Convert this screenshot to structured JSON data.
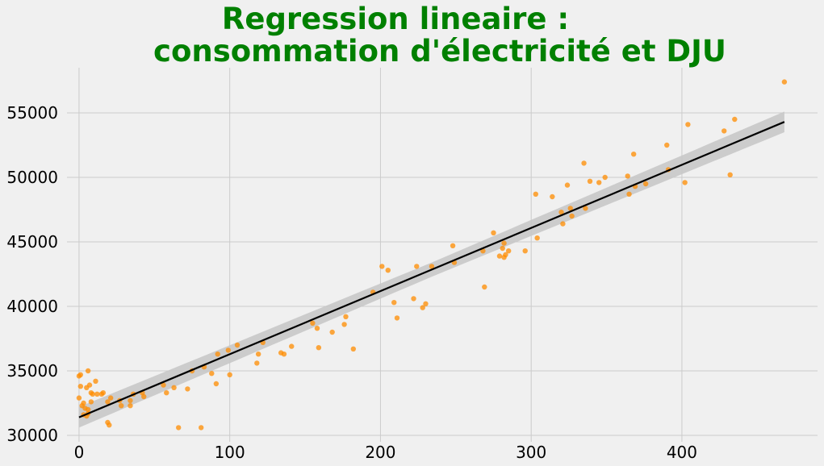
{
  "chart_data": {
    "type": "scatter",
    "title": "Regression lineaire :\nconsommation d'électricité et DJU",
    "title_lines": [
      "Regression lineaire :",
      "consommation d'électricité et DJU"
    ],
    "xlabel": "",
    "ylabel": "",
    "xlim": [
      -8,
      490
    ],
    "ylim": [
      29500,
      58500
    ],
    "xticks": [
      0,
      100,
      200,
      300,
      400
    ],
    "yticks": [
      30000,
      35000,
      40000,
      45000,
      50000,
      55000
    ],
    "xtick_labels": [
      "0",
      "100",
      "200",
      "300",
      "400"
    ],
    "ytick_labels": [
      "30000",
      "35000",
      "40000",
      "45000",
      "50000",
      "55000"
    ],
    "grid": true,
    "legend": "none",
    "colors": {
      "background": "#f0f0f0",
      "grid": "#cbcbcb",
      "points": "#ff8c00",
      "regression_line": "#000000",
      "confidence_band": "#c8c8c8",
      "title": "#008000"
    },
    "points": {
      "x": [
        0,
        0,
        1,
        1,
        2,
        3,
        3,
        4,
        5,
        5,
        6,
        6,
        6,
        7,
        8,
        8,
        9,
        11,
        12,
        15,
        16,
        19,
        19,
        20,
        21,
        27,
        28,
        34,
        34,
        36,
        42,
        43,
        56,
        58,
        63,
        66,
        72,
        75,
        81,
        83,
        88,
        91,
        92,
        99,
        100,
        105,
        118,
        119,
        122,
        134,
        136,
        141,
        155,
        158,
        159,
        168,
        176,
        177,
        182,
        195,
        201,
        205,
        209,
        211,
        222,
        224,
        228,
        230,
        234,
        248,
        249,
        268,
        269,
        275,
        279,
        281,
        282,
        282,
        283,
        285,
        296,
        303,
        304,
        314,
        320,
        321,
        324,
        326,
        327,
        335,
        336,
        339,
        345,
        349,
        364,
        365,
        368,
        369,
        376,
        390,
        391,
        402,
        404,
        428,
        432,
        435,
        468
      ],
      "y": [
        34600,
        32900,
        34700,
        33800,
        32300,
        32500,
        31600,
        32100,
        33700,
        31500,
        35000,
        32000,
        31700,
        33900,
        32600,
        33300,
        33200,
        34200,
        33200,
        33200,
        33300,
        31000,
        32600,
        30800,
        32900,
        32700,
        32300,
        32300,
        32700,
        33200,
        33300,
        33000,
        33900,
        33300,
        33700,
        30600,
        33600,
        35000,
        30600,
        35300,
        34800,
        34000,
        36300,
        36600,
        34700,
        37000,
        35600,
        36300,
        37200,
        36400,
        36300,
        36900,
        38700,
        38300,
        36800,
        38000,
        38600,
        39200,
        36700,
        41100,
        43100,
        42800,
        40300,
        39100,
        40600,
        43100,
        39900,
        40200,
        43100,
        44700,
        43400,
        44300,
        41500,
        45700,
        43900,
        44500,
        43800,
        44900,
        44000,
        44300,
        44300,
        48700,
        45300,
        48500,
        47300,
        46400,
        49400,
        47600,
        47000,
        51100,
        47600,
        49700,
        49600,
        50000,
        50100,
        48700,
        51800,
        49300,
        49500,
        52500,
        50600,
        49600,
        54100,
        53600,
        50200,
        54500,
        57400
      ]
    },
    "regression": {
      "x": [
        0,
        468
      ],
      "y": [
        31400,
        54300
      ],
      "ci_halfwidth": [
        550,
        800
      ]
    }
  }
}
